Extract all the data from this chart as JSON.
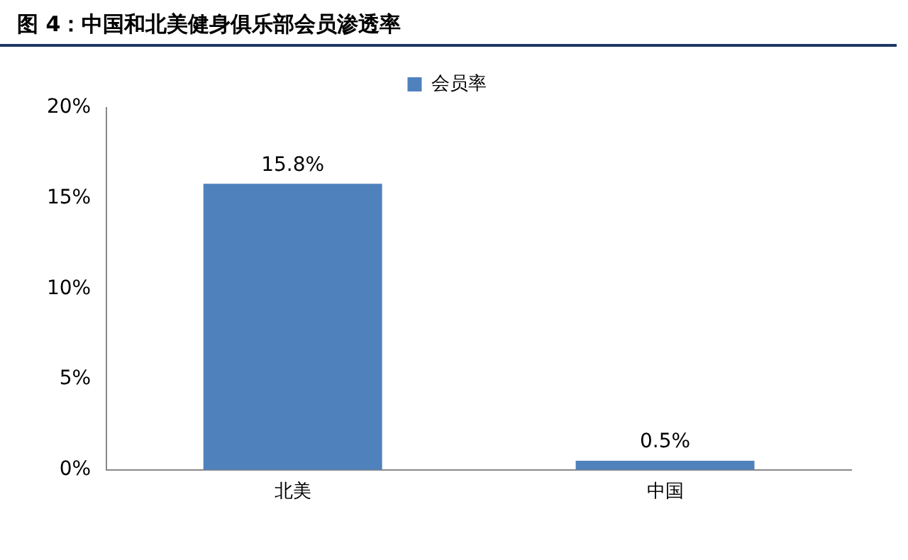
{
  "chart_data": {
    "type": "bar",
    "title": "图 4：中国和北美健身俱乐部会员渗透率",
    "categories": [
      "北美",
      "中国"
    ],
    "series": [
      {
        "name": "会员率",
        "color": "#4f81bd",
        "values": [
          15.8,
          0.5
        ],
        "value_labels": [
          "15.8%",
          "0.5%"
        ]
      }
    ],
    "ylim": [
      0,
      20
    ],
    "yticks": [
      {
        "value": 0,
        "label": "0%"
      },
      {
        "value": 5,
        "label": "5%"
      },
      {
        "value": 10,
        "label": "10%"
      },
      {
        "value": 15,
        "label": "15%"
      },
      {
        "value": 20,
        "label": "20%"
      }
    ],
    "grid": false,
    "legend": "top"
  }
}
